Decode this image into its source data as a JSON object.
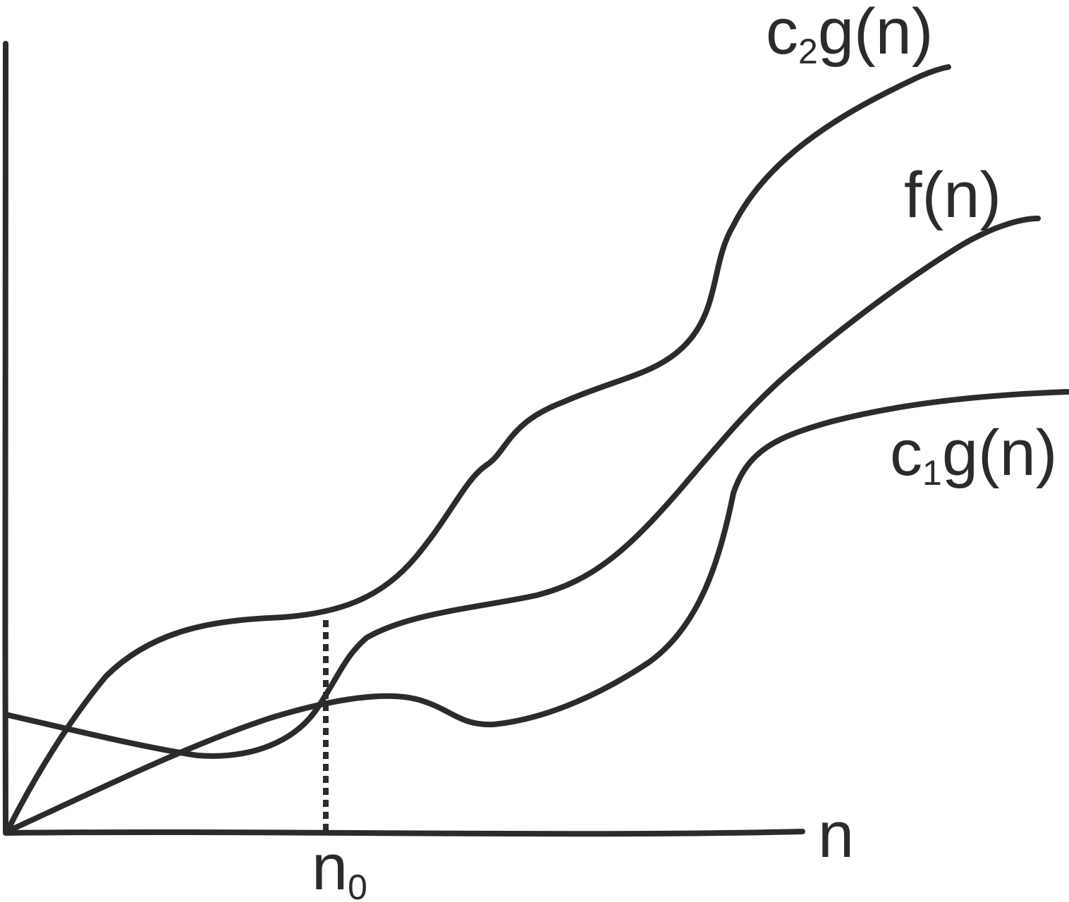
{
  "labels": {
    "upper_bound": {
      "c": "c",
      "sub": "2",
      "rest": "g(n)"
    },
    "function": "f(n)",
    "lower_bound": {
      "c": "c",
      "sub": "1",
      "rest": "g(n)"
    },
    "x_axis": "n",
    "threshold": {
      "base": "n",
      "sub": "0"
    }
  },
  "colors": {
    "ink": "#2b2b2b",
    "background": "#ffffff"
  }
}
